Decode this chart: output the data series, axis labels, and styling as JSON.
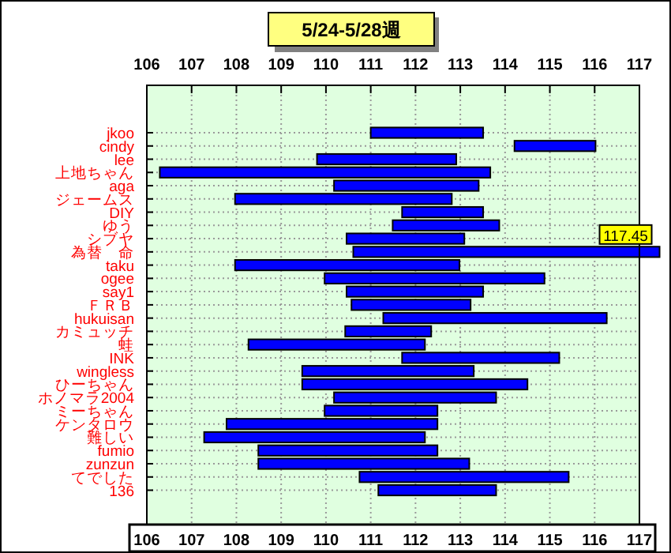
{
  "chart_data": {
    "type": "bar",
    "orientation": "horizontal",
    "title": "5/24-5/28週",
    "categories": [
      "jkoo",
      "cindy",
      "lee",
      "上地ちゃん",
      "aga",
      "ジェームス",
      "DIY",
      "ゆう",
      "シブヤ",
      "為替　命",
      "taku",
      "ogee",
      "say1",
      "ＦＲＢ",
      "hukuisan",
      "カミュッチ",
      "蛙",
      "INK",
      "wingless",
      "ひーちゃん",
      "ホノマラ2004",
      "ミーちゃん",
      "ケンタロウ",
      "難しい",
      "fumio",
      "zunzun",
      "てでした",
      "136"
    ],
    "base": [
      111.0,
      114.21,
      109.8,
      106.29,
      110.18,
      107.97,
      111.7,
      111.49,
      110.46,
      110.61,
      107.97,
      109.97,
      110.46,
      110.57,
      111.28,
      110.43,
      108.27,
      111.7,
      109.47,
      109.47,
      110.18,
      109.97,
      107.78,
      107.28,
      108.49,
      108.49,
      110.75,
      111.17
    ],
    "values": [
      2.51,
      1.81,
      3.11,
      7.38,
      3.23,
      4.84,
      1.81,
      2.38,
      2.63,
      6.84,
      5.01,
      4.91,
      3.05,
      2.66,
      4.99,
      1.92,
      3.94,
      3.51,
      3.83,
      5.03,
      3.62,
      2.52,
      4.71,
      4.93,
      4.0,
      4.71,
      4.67,
      2.63
    ],
    "value_labels": [
      null,
      null,
      null,
      null,
      null,
      null,
      null,
      null,
      null,
      "117.45",
      null,
      null,
      null,
      null,
      null,
      null,
      null,
      null,
      null,
      null,
      null,
      null,
      null,
      null,
      null,
      null,
      null,
      null
    ],
    "color": "#0000ff",
    "xlim": [
      106,
      117
    ],
    "xticks": [
      106,
      107,
      108,
      109,
      110,
      111,
      112,
      113,
      114,
      115,
      116,
      117
    ],
    "x2lim": [
      106,
      117
    ],
    "x2ticks": [
      106,
      107,
      108,
      109,
      110,
      111,
      112,
      113,
      114,
      115,
      116,
      117
    ],
    "grid": true
  }
}
